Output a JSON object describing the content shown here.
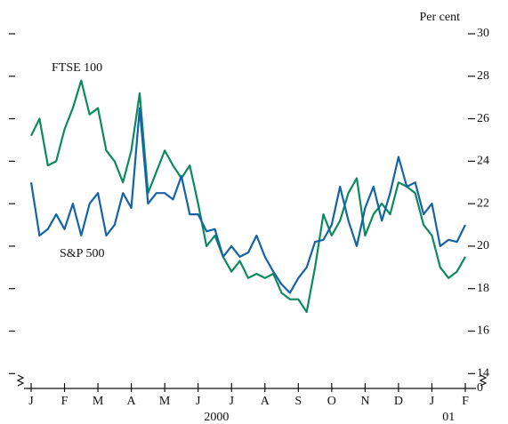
{
  "chart_data": {
    "type": "line",
    "y_unit": "Per cent",
    "x": [
      0,
      0.25,
      0.5,
      0.75,
      1,
      1.25,
      1.5,
      1.75,
      2,
      2.25,
      2.5,
      2.75,
      3,
      3.25,
      3.5,
      3.75,
      4,
      4.25,
      4.5,
      4.75,
      5,
      5.25,
      5.5,
      5.75,
      6,
      6.25,
      6.5,
      6.75,
      7,
      7.25,
      7.5,
      7.75,
      8,
      8.25,
      8.5,
      8.75,
      9,
      9.25,
      9.5,
      9.75,
      10,
      10.25,
      10.5,
      10.75,
      11,
      11.25,
      11.5,
      11.75,
      12,
      12.25,
      12.5,
      12.75,
      13
    ],
    "series": [
      {
        "name": "FTSE 100",
        "color": "#0b8a5c",
        "values": [
          25.2,
          26.0,
          23.8,
          24.0,
          25.5,
          26.5,
          27.8,
          26.2,
          26.5,
          24.5,
          24.0,
          23.0,
          24.5,
          27.2,
          22.5,
          23.5,
          24.5,
          23.8,
          23.2,
          23.8,
          22.0,
          20.0,
          20.5,
          19.5,
          18.8,
          19.3,
          18.5,
          18.7,
          18.5,
          18.7,
          17.8,
          17.5,
          17.5,
          16.9,
          19.0,
          21.5,
          20.5,
          21.2,
          22.5,
          23.2,
          20.5,
          21.5,
          22.0,
          21.5,
          23.0,
          22.8,
          22.5,
          21.0,
          20.5,
          19.0,
          18.5,
          18.8,
          19.5
        ]
      },
      {
        "name": "S&P 500",
        "color": "#1463a8",
        "values": [
          23.0,
          20.5,
          20.8,
          21.5,
          20.8,
          22.0,
          20.5,
          22.0,
          22.5,
          20.5,
          21.0,
          22.5,
          21.8,
          26.5,
          22.0,
          22.5,
          22.5,
          22.2,
          23.3,
          21.5,
          21.5,
          20.7,
          20.8,
          19.5,
          20.0,
          19.5,
          19.7,
          20.5,
          19.5,
          18.8,
          18.2,
          17.8,
          18.5,
          19.0,
          20.2,
          20.3,
          21.0,
          22.8,
          21.2,
          20.0,
          21.8,
          22.8,
          21.2,
          22.5,
          24.2,
          22.8,
          23.0,
          21.5,
          22.0,
          20.0,
          20.3,
          20.2,
          21.0
        ]
      }
    ],
    "xlim": [
      0,
      13
    ],
    "xticks": [
      {
        "value": 0,
        "label": "J"
      },
      {
        "value": 1,
        "label": "F"
      },
      {
        "value": 2,
        "label": "M"
      },
      {
        "value": 3,
        "label": "A"
      },
      {
        "value": 4,
        "label": "M"
      },
      {
        "value": 5,
        "label": "J"
      },
      {
        "value": 6,
        "label": "J"
      },
      {
        "value": 7,
        "label": "A"
      },
      {
        "value": 8,
        "label": "S"
      },
      {
        "value": 9,
        "label": "O"
      },
      {
        "value": 10,
        "label": "N"
      },
      {
        "value": 11,
        "label": "D"
      },
      {
        "value": 12,
        "label": "J"
      },
      {
        "value": 13,
        "label": "F"
      }
    ],
    "year_labels": [
      {
        "value": 5.55,
        "label": "2000"
      },
      {
        "value": 12.5,
        "label": "01"
      }
    ],
    "ylim": [
      13.3,
      30
    ],
    "yticks": [
      14,
      16,
      18,
      20,
      22,
      24,
      26,
      28,
      30
    ],
    "ybreak": {
      "value": 0
    }
  }
}
